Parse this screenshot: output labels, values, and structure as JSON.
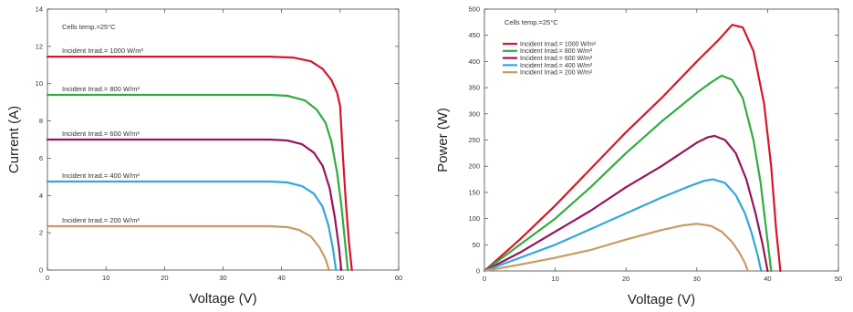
{
  "chart_data": [
    {
      "type": "line",
      "title": "",
      "xlabel": "Voltage (V)",
      "ylabel": "Current (A)",
      "xlim": [
        0,
        60
      ],
      "ylim": [
        0,
        14
      ],
      "xticks": [
        0,
        10,
        20,
        30,
        40,
        50,
        60
      ],
      "yticks": [
        0,
        2,
        4,
        6,
        8,
        10,
        12,
        14
      ],
      "grid": false,
      "legend": "none",
      "annotation": "Cells temp.=25°C",
      "series": [
        {
          "name": "Incident Irrad.= 1000 W/m²",
          "color": "#d7152a",
          "x": [
            0,
            38,
            42,
            45,
            47,
            48.5,
            49.5,
            50,
            50.5,
            51,
            51.5,
            52
          ],
          "y": [
            11.45,
            11.45,
            11.4,
            11.2,
            10.8,
            10.2,
            9.5,
            8.8,
            6,
            3.5,
            1.5,
            0
          ]
        },
        {
          "name": "Incident Irrad.= 800 W/m²",
          "color": "#2fad3e",
          "x": [
            0,
            38,
            41,
            44,
            46,
            47.5,
            48.5,
            49.5,
            50.2,
            50.8,
            51.3
          ],
          "y": [
            9.4,
            9.4,
            9.35,
            9.1,
            8.6,
            7.9,
            6.9,
            5.2,
            3.5,
            1.6,
            0
          ]
        },
        {
          "name": "Incident Irrad.= 600 W/m²",
          "color": "#99135a",
          "x": [
            0,
            38,
            41,
            43.5,
            45.5,
            47,
            48.2,
            49.1,
            49.8,
            50.2
          ],
          "y": [
            7,
            7,
            6.95,
            6.75,
            6.3,
            5.6,
            4.4,
            2.8,
            1.2,
            0
          ]
        },
        {
          "name": "Incident Irrad.= 400 W/m²",
          "color": "#33a6dd",
          "x": [
            0,
            38,
            41,
            43.5,
            45.5,
            47,
            48,
            48.8,
            49.3
          ],
          "y": [
            4.75,
            4.75,
            4.7,
            4.5,
            4.1,
            3.4,
            2.4,
            1.1,
            0
          ]
        },
        {
          "name": "Incident Irrad.= 200 W/m²",
          "color": "#c99a63",
          "x": [
            0,
            38,
            41,
            43,
            45,
            46.5,
            47.5,
            48.1
          ],
          "y": [
            2.35,
            2.35,
            2.3,
            2.15,
            1.8,
            1.2,
            0.6,
            0
          ]
        }
      ]
    },
    {
      "type": "line",
      "title": "",
      "xlabel": "Voltage (V)",
      "ylabel": "Power (W)",
      "xlim": [
        0,
        50
      ],
      "ylim": [
        0,
        500
      ],
      "xticks": [
        0,
        10,
        20,
        30,
        40,
        50
      ],
      "yticks": [
        0,
        50,
        100,
        150,
        200,
        250,
        300,
        350,
        400,
        450,
        500
      ],
      "grid": false,
      "legend": "top-left",
      "annotation": "Cells temp.=25°C",
      "series": [
        {
          "name": "Incident Irrad.= 1000 W/m²",
          "color": "#d7152a",
          "x": [
            0,
            5,
            10,
            15,
            20,
            25,
            30,
            33,
            35,
            36.5,
            38,
            39.5,
            40.5,
            41.2,
            41.8
          ],
          "y": [
            0,
            60,
            125,
            195,
            265,
            330,
            400,
            440,
            470,
            465,
            420,
            320,
            200,
            80,
            0
          ]
        },
        {
          "name": "Incident Irrad.= 800 W/m²",
          "color": "#2fad3e",
          "x": [
            0,
            5,
            10,
            15,
            20,
            25,
            30,
            32,
            33.5,
            35,
            36.5,
            38,
            39,
            39.8,
            40.5
          ],
          "y": [
            0,
            50,
            100,
            160,
            225,
            285,
            340,
            360,
            373,
            365,
            330,
            250,
            170,
            80,
            0
          ]
        },
        {
          "name": "Incident Irrad.= 600 W/m²",
          "color": "#99135a",
          "x": [
            0,
            5,
            10,
            15,
            20,
            25,
            30,
            31.5,
            32.5,
            34,
            35.5,
            37,
            38.3,
            39.3,
            40
          ],
          "y": [
            0,
            35,
            75,
            115,
            160,
            200,
            245,
            255,
            258,
            250,
            225,
            175,
            110,
            50,
            0
          ]
        },
        {
          "name": "Incident Irrad.= 400 W/m²",
          "color": "#33a6dd",
          "x": [
            0,
            5,
            10,
            15,
            20,
            25,
            29,
            31,
            32.3,
            34,
            35.5,
            36.8,
            37.8,
            38.6,
            39.1
          ],
          "y": [
            0,
            25,
            50,
            80,
            110,
            140,
            162,
            172,
            175,
            168,
            145,
            110,
            70,
            30,
            0
          ]
        },
        {
          "name": "Incident Irrad.= 200 W/m²",
          "color": "#c99a63",
          "x": [
            0,
            5,
            10,
            15,
            20,
            25,
            28,
            30,
            32,
            33.5,
            35,
            36,
            36.8,
            37.2
          ],
          "y": [
            0,
            12,
            25,
            40,
            60,
            78,
            87,
            90,
            86,
            75,
            55,
            35,
            15,
            0
          ]
        }
      ]
    }
  ]
}
